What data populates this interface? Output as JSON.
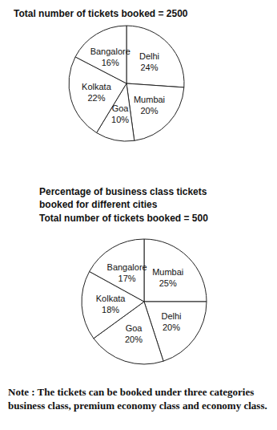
{
  "chart_data": [
    {
      "type": "pie",
      "title": "Total number of tickets booked = 2500",
      "categories": [
        "Delhi",
        "Mumbai",
        "Goa",
        "Kolkata",
        "Bangalore"
      ],
      "values": [
        24,
        20,
        10,
        22,
        16
      ],
      "value_labels": [
        "24%",
        "20%",
        "10%",
        "22%",
        "16%"
      ],
      "data_labels": true,
      "color": "#ffffff"
    },
    {
      "type": "pie",
      "title": "Percentage of business class tickets booked for different cities",
      "subtitle": "Total number of tickets booked = 500",
      "categories": [
        "Mumbai",
        "Delhi",
        "Goa",
        "Kolkata",
        "Bangalore"
      ],
      "values": [
        25,
        20,
        20,
        18,
        17
      ],
      "value_labels": [
        "25%",
        "20%",
        "20%",
        "18%",
        "17%"
      ],
      "data_labels": true,
      "color": "#ffffff"
    }
  ],
  "note": "Note : The tickets can be booked under three categories business class, premium economy class and economy class."
}
